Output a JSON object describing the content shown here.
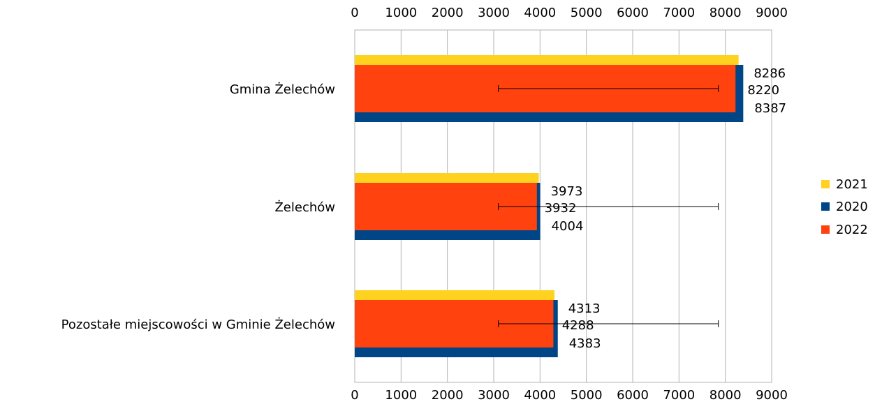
{
  "chart_data": {
    "type": "bar",
    "orientation": "horizontal",
    "categories": [
      "Gmina Żelechów",
      "Żelechów",
      "Pozostałe miejscowości w Gminie Żelechów"
    ],
    "series": [
      {
        "name": "2021",
        "color": "#FFD21F",
        "values": [
          8286,
          3973,
          4313
        ]
      },
      {
        "name": "2020",
        "color": "#004586",
        "values": [
          8387,
          4004,
          4383
        ]
      },
      {
        "name": "2022",
        "color": "#FF420E",
        "values": [
          8220,
          3932,
          4288
        ]
      }
    ],
    "error_bars": [
      {
        "category": "Gmina Żelechów",
        "low": 3100,
        "high": 7850
      },
      {
        "category": "Żelechów",
        "low": 3100,
        "high": 7850
      },
      {
        "category": "Pozostałe miejscowości w Gminie Żelechów",
        "low": 3100,
        "high": 7850
      }
    ],
    "xlim": [
      0,
      9000
    ],
    "x_ticks": [
      "0",
      "1000",
      "2000",
      "3000",
      "4000",
      "5000",
      "6000",
      "7000",
      "8000",
      "9000"
    ],
    "xlabel": "",
    "ylabel": "",
    "title": "",
    "grid": "vertical",
    "legend": {
      "placement": "right",
      "order": [
        "2021",
        "2020",
        "2022"
      ]
    }
  }
}
